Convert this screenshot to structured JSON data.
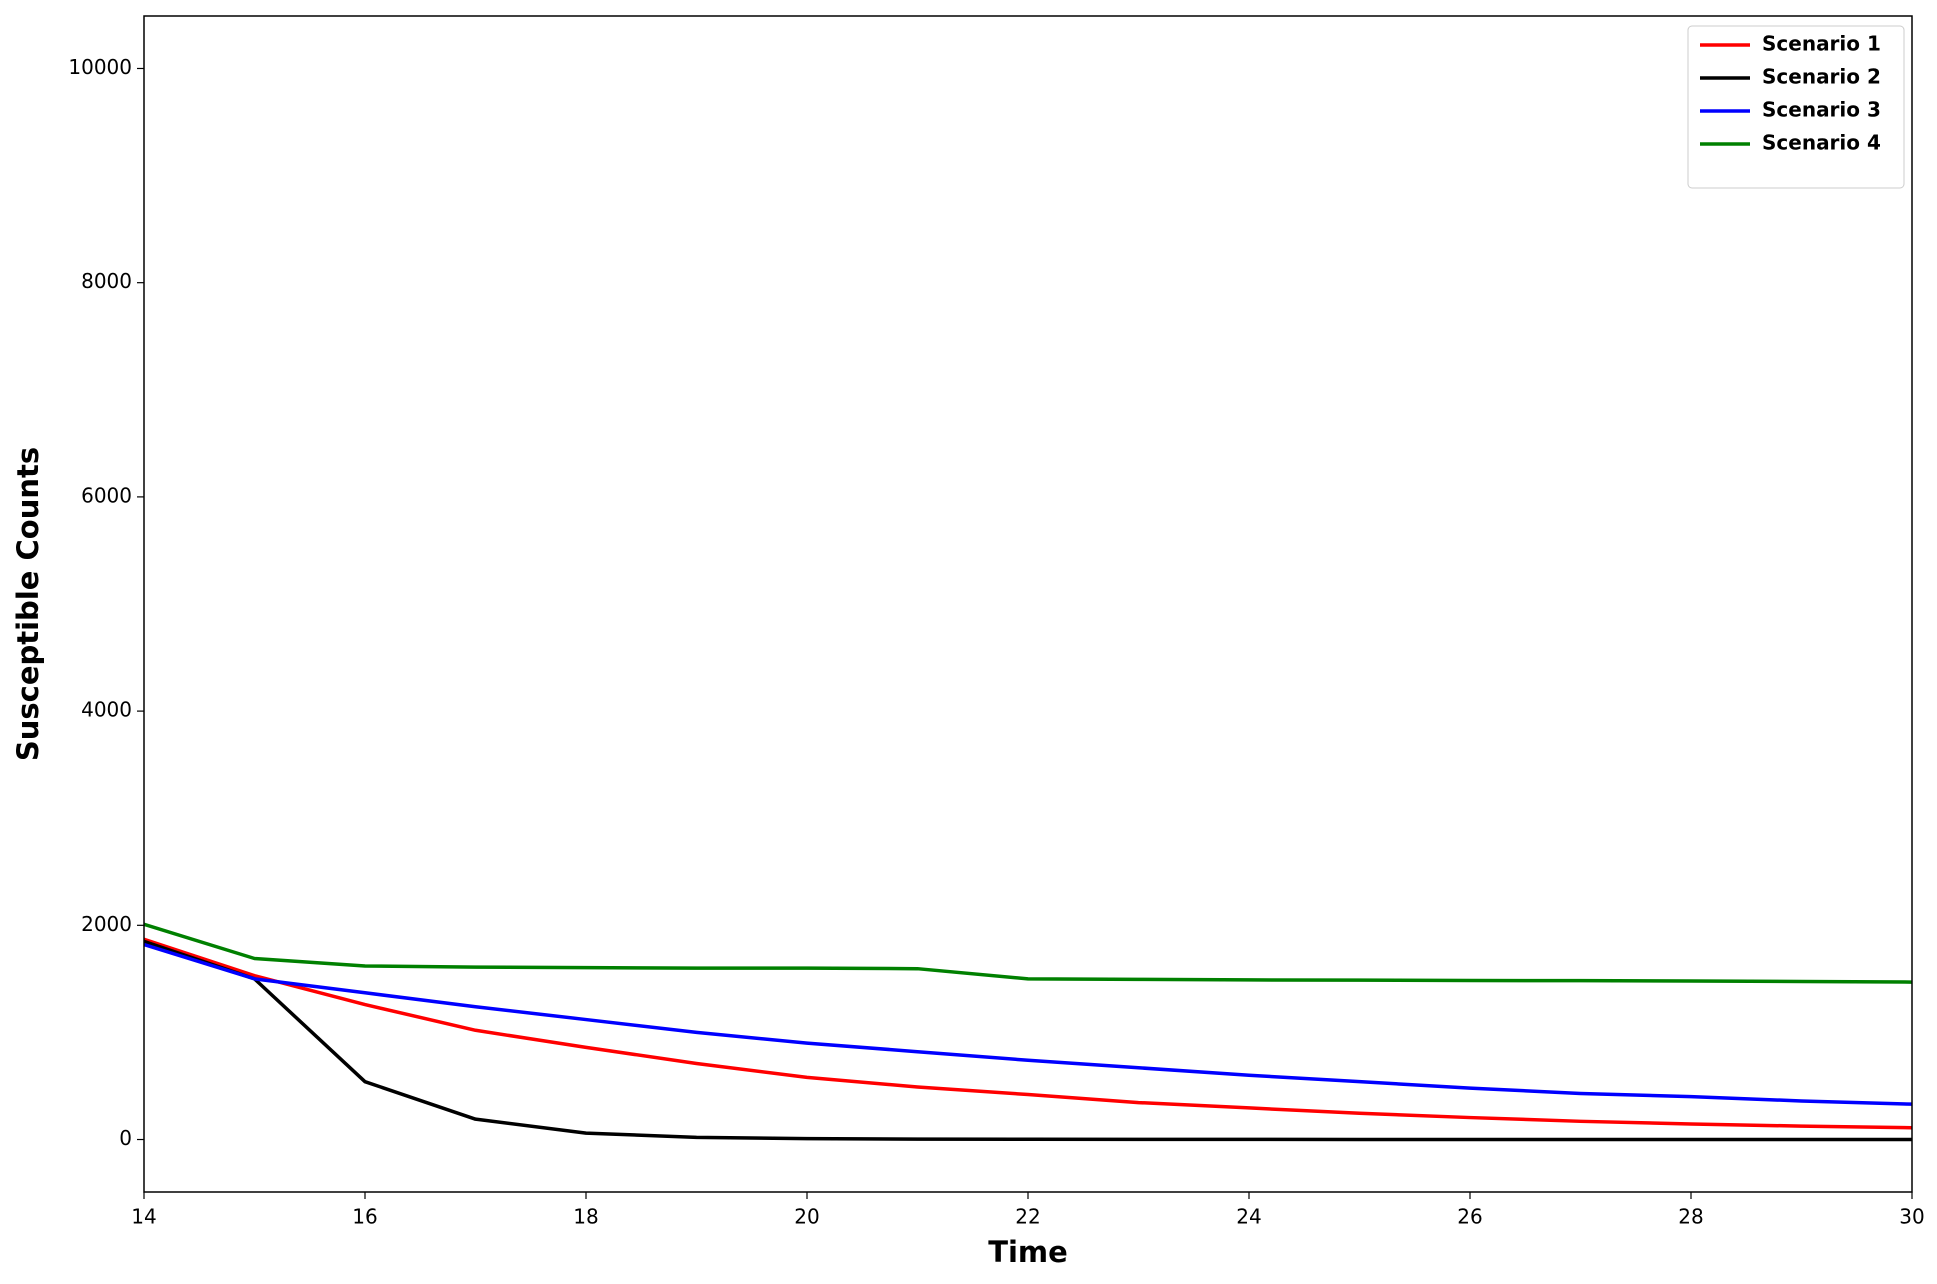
{
  "chart_data": {
    "type": "line",
    "x_label": "Time",
    "y_label": "Susceptible Counts",
    "x": [
      14,
      15,
      16,
      17,
      18,
      19,
      20,
      21,
      22,
      23,
      24,
      25,
      26,
      27,
      28,
      29,
      30
    ],
    "series": [
      {
        "name": "Scenario 1",
        "color": "#ff0000",
        "values": [
          1870,
          1530,
          1260,
          1020,
          860,
          710,
          580,
          490,
          420,
          345,
          295,
          245,
          205,
          170,
          145,
          125,
          110
        ]
      },
      {
        "name": "Scenario 2",
        "color": "#000000",
        "values": [
          1850,
          1500,
          540,
          190,
          60,
          20,
          8,
          4,
          2,
          1,
          1,
          0,
          0,
          0,
          0,
          0,
          0
        ]
      },
      {
        "name": "Scenario 3",
        "color": "#0000ff",
        "values": [
          1820,
          1500,
          1370,
          1240,
          1120,
          1000,
          900,
          820,
          740,
          670,
          600,
          540,
          480,
          430,
          400,
          360,
          330
        ]
      },
      {
        "name": "Scenario 4",
        "color": "#008000",
        "values": [
          2010,
          1690,
          1620,
          1610,
          1605,
          1600,
          1600,
          1595,
          1500,
          1495,
          1490,
          1488,
          1485,
          1483,
          1480,
          1475,
          1470
        ]
      }
    ],
    "xlim": [
      14,
      30
    ],
    "xticks": [
      14,
      16,
      18,
      20,
      22,
      24,
      26,
      28,
      30
    ],
    "ylim": [
      -490,
      10490
    ],
    "yticks": [
      0,
      2000,
      4000,
      6000,
      8000,
      10000
    ],
    "grid": false,
    "legend": "upper right"
  }
}
